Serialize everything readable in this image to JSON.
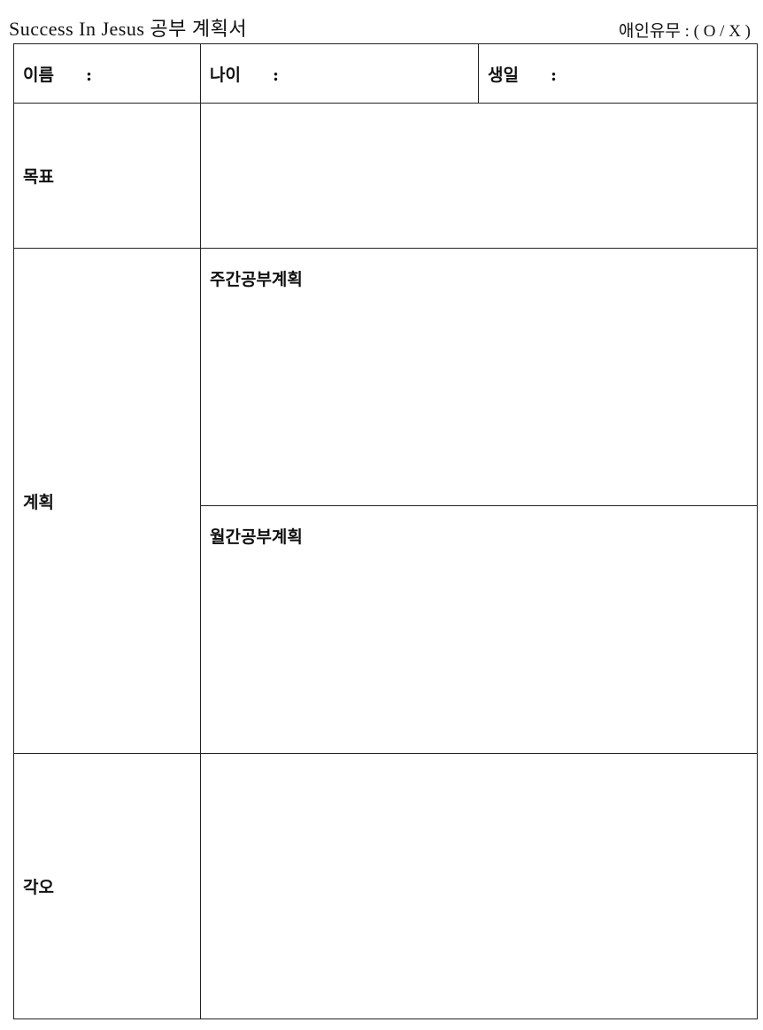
{
  "header": {
    "title": "Success In Jesus  공부 계획서",
    "relationship": "애인유무 : ( O / X )"
  },
  "info_row": {
    "name_label": "이름",
    "age_label": "나이",
    "birthday_label": "생일",
    "separator": ":"
  },
  "rows": {
    "goal_label": "목표",
    "plan_label": "계획",
    "weekly_plan_label": "주간공부계획",
    "monthly_plan_label": "월간공부계획",
    "resolution_label": "각오"
  }
}
